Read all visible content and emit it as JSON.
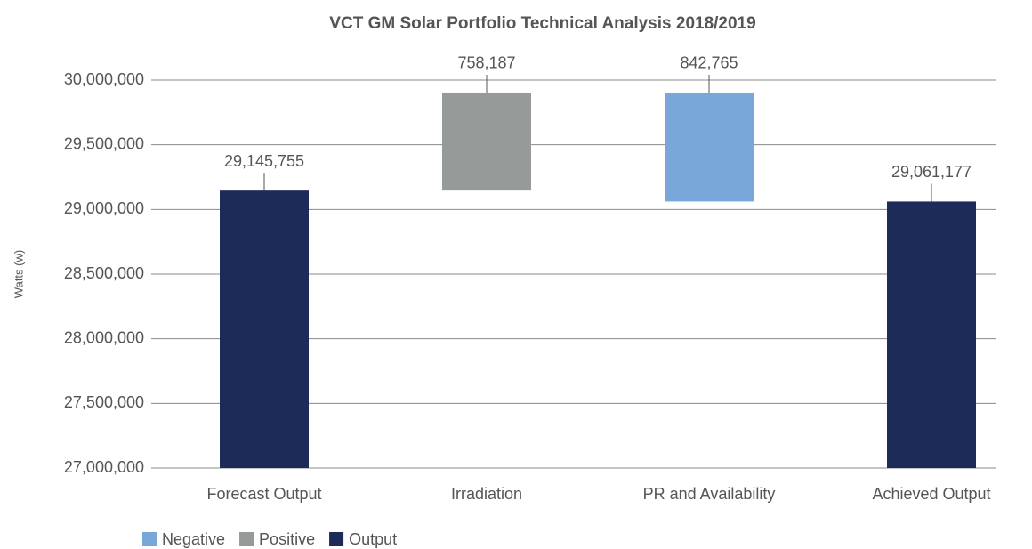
{
  "chart_data": {
    "type": "waterfall",
    "title": "VCT GM Solar Portfolio Technical Analysis 2018/2019",
    "y_label": "Watts (w)",
    "categories": [
      "Forecast Output",
      "Irradiation",
      "PR and Availability",
      "Achieved Output"
    ],
    "series": [
      {
        "name": "Negative",
        "color": "#7aa7d9",
        "values": [
          null,
          null,
          842765,
          null
        ],
        "value_labels": [
          null,
          null,
          "842,765",
          null
        ]
      },
      {
        "name": "Positive",
        "color": "#969a99",
        "values": [
          null,
          758187,
          null,
          null
        ],
        "value_labels": [
          null,
          "758,187",
          null,
          null
        ]
      },
      {
        "name": "Output",
        "color": "#1c2b57",
        "values": [
          29145755,
          null,
          null,
          29061177
        ],
        "value_labels": [
          "29,145,755",
          null,
          null,
          "29,061,177"
        ]
      }
    ],
    "ylim": [
      27000000,
      30000000
    ],
    "yticks": [
      {
        "value": 27000000,
        "label": "27,000,000"
      },
      {
        "value": 27500000,
        "label": "27,500,000"
      },
      {
        "value": 28000000,
        "label": "28,000,000"
      },
      {
        "value": 28500000,
        "label": "28,500,000"
      },
      {
        "value": 29000000,
        "label": "29,000,000"
      },
      {
        "value": 29500000,
        "label": "29,500,000"
      },
      {
        "value": 30000000,
        "label": "30,000,000"
      }
    ],
    "grid": true,
    "legend": "bottom"
  }
}
